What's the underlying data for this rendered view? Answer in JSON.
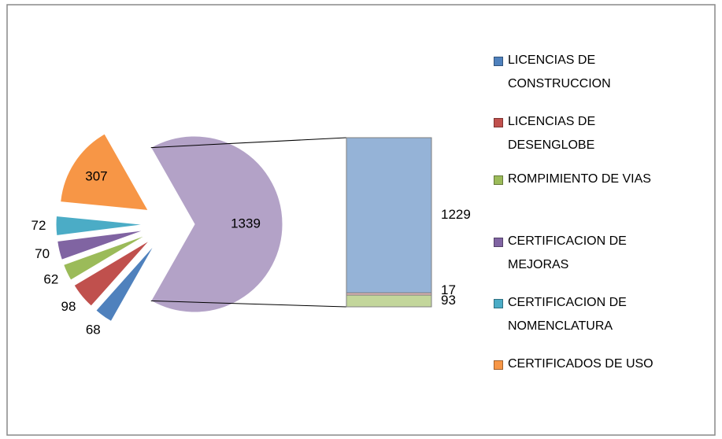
{
  "chart_data": {
    "type": "bar-of-pie",
    "series": [
      {
        "name": "LICENCIAS DE CONSTRUCCION",
        "color": "#4f81bd",
        "value": 68
      },
      {
        "name": "LICENCIAS DE DESENGLOBE",
        "color": "#c0504d",
        "value": 98
      },
      {
        "name": "ROMPIMIENTO DE VIAS",
        "color": "#9bbb59",
        "value": 62
      },
      {
        "name": "CERTIFICACION DE MEJORAS",
        "color": "#8064a2",
        "value": 70
      },
      {
        "name": "CERTIFICACION DE NOMENCLATURA",
        "color": "#4bacc6",
        "value": 72
      },
      {
        "name": "CERTIFICADOS DE USO",
        "color": "#f79646",
        "value": 307
      }
    ],
    "other_value": 1339,
    "other_color": "#b3a2c7",
    "bar_values": [
      1229,
      17,
      93
    ],
    "bar_colors": [
      "#95b3d7",
      "#e6b9b8",
      "#c3d69b"
    ]
  }
}
